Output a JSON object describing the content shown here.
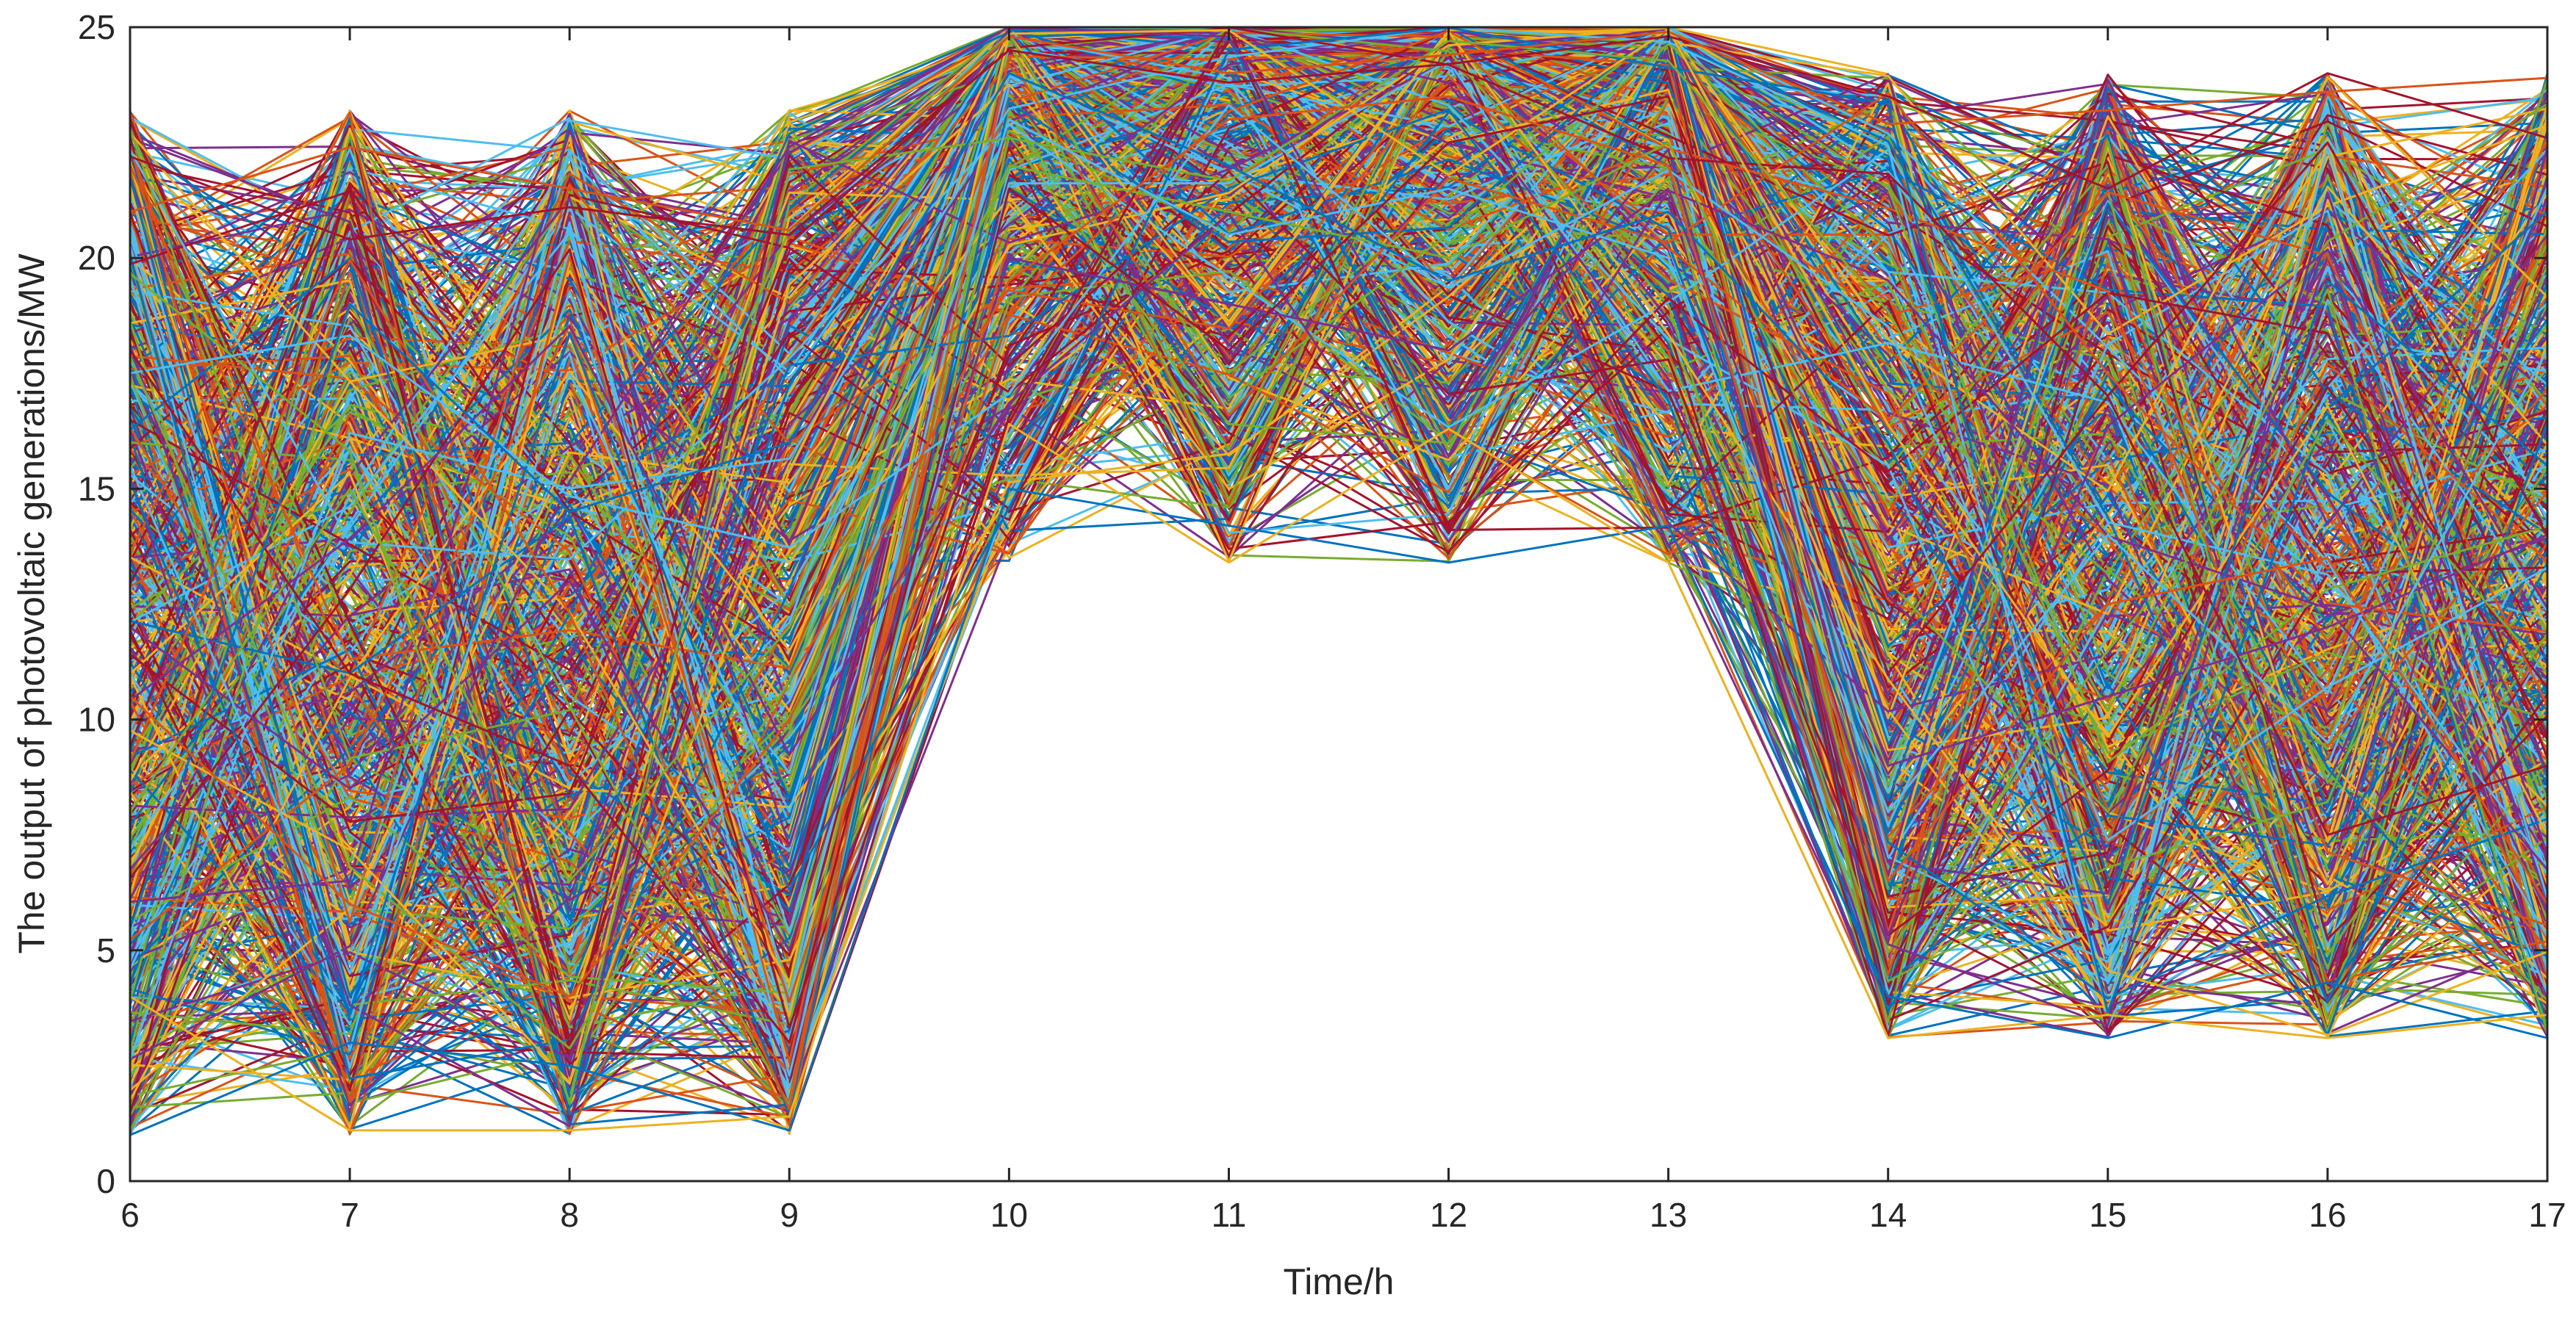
{
  "chart_data": {
    "type": "line",
    "title": "",
    "xlabel": "Time/h",
    "ylabel": "The output of photovoltaic generations/MW",
    "x": [
      6,
      7,
      8,
      9,
      10,
      11,
      12,
      13,
      14,
      15,
      16,
      17
    ],
    "xlim": [
      6,
      17
    ],
    "ylim": [
      0,
      25
    ],
    "x_ticks": [
      "6",
      "7",
      "8",
      "9",
      "10",
      "11",
      "12",
      "13",
      "14",
      "15",
      "16",
      "17"
    ],
    "y_ticks": [
      "0",
      "5",
      "10",
      "15",
      "20",
      "25"
    ],
    "grid": false,
    "legend": "none",
    "series_count": 1000,
    "color_order": [
      "#0072BD",
      "#D95319",
      "#EDB120",
      "#7E2F8E",
      "#77AC30",
      "#4DBEEE",
      "#A2142F"
    ],
    "value_bands_per_hour": [
      {
        "x": 6,
        "min": 1.0,
        "max": 23.2
      },
      {
        "x": 7,
        "min": 1.0,
        "max": 23.2
      },
      {
        "x": 8,
        "min": 1.0,
        "max": 23.2
      },
      {
        "x": 9,
        "min": 1.0,
        "max": 23.2
      },
      {
        "x": 10,
        "min": 13.4,
        "max": 25.0
      },
      {
        "x": 11,
        "min": 13.4,
        "max": 25.0
      },
      {
        "x": 12,
        "min": 13.4,
        "max": 25.0
      },
      {
        "x": 13,
        "min": 13.4,
        "max": 25.0
      },
      {
        "x": 14,
        "min": 3.1,
        "max": 24.0
      },
      {
        "x": 15,
        "min": 3.1,
        "max": 24.0
      },
      {
        "x": 16,
        "min": 3.1,
        "max": 24.0
      },
      {
        "x": 17,
        "min": 3.1,
        "max": 24.0
      }
    ],
    "series_sample": [
      {
        "values": [
          22.2,
          20.4,
          21.1,
          20.5,
          24.5,
          23.8,
          24.2,
          24.8,
          23.5,
          21.5,
          24.0,
          22.6
        ]
      },
      {
        "values": [
          1.0,
          3.0,
          2.5,
          1.1,
          15.0,
          14.2,
          13.4,
          14.2,
          4.0,
          3.1,
          4.3,
          3.1
        ]
      },
      {
        "values": [
          21.0,
          22.4,
          21.5,
          20.6,
          24.8,
          24.0,
          24.4,
          24.9,
          22.9,
          23.2,
          23.6,
          23.9
        ]
      },
      {
        "values": [
          4.0,
          1.1,
          1.1,
          1.4,
          16.4,
          13.4,
          16.3,
          13.4,
          3.1,
          3.6,
          3.1,
          3.6
        ]
      },
      {
        "values": [
          12.0,
          8.5,
          13.0,
          5.0,
          20.0,
          19.0,
          18.0,
          21.5,
          9.0,
          10.5,
          12.0,
          14.0
        ]
      },
      {
        "values": [
          8.0,
          15.0,
          6.5,
          12.0,
          22.0,
          21.0,
          20.0,
          22.5,
          13.0,
          8.0,
          16.5,
          11.0
        ]
      },
      {
        "values": [
          15.5,
          4.5,
          17.5,
          8.0,
          23.0,
          20.5,
          21.5,
          20.0,
          8.0,
          14.0,
          9.5,
          18.0
        ]
      },
      {
        "values": [
          18.0,
          11.0,
          9.0,
          3.0,
          21.5,
          18.0,
          22.5,
          23.5,
          11.0,
          17.0,
          7.5,
          9.0
        ]
      },
      {
        "values": [
          5.5,
          19.0,
          14.5,
          16.0,
          24.0,
          22.0,
          19.5,
          21.0,
          16.0,
          6.0,
          19.5,
          15.5
        ]
      },
      {
        "values": [
          10.5,
          6.0,
          4.0,
          10.0,
          19.5,
          23.0,
          23.5,
          22.0,
          6.5,
          12.5,
          13.5,
          6.0
        ]
      }
    ]
  }
}
